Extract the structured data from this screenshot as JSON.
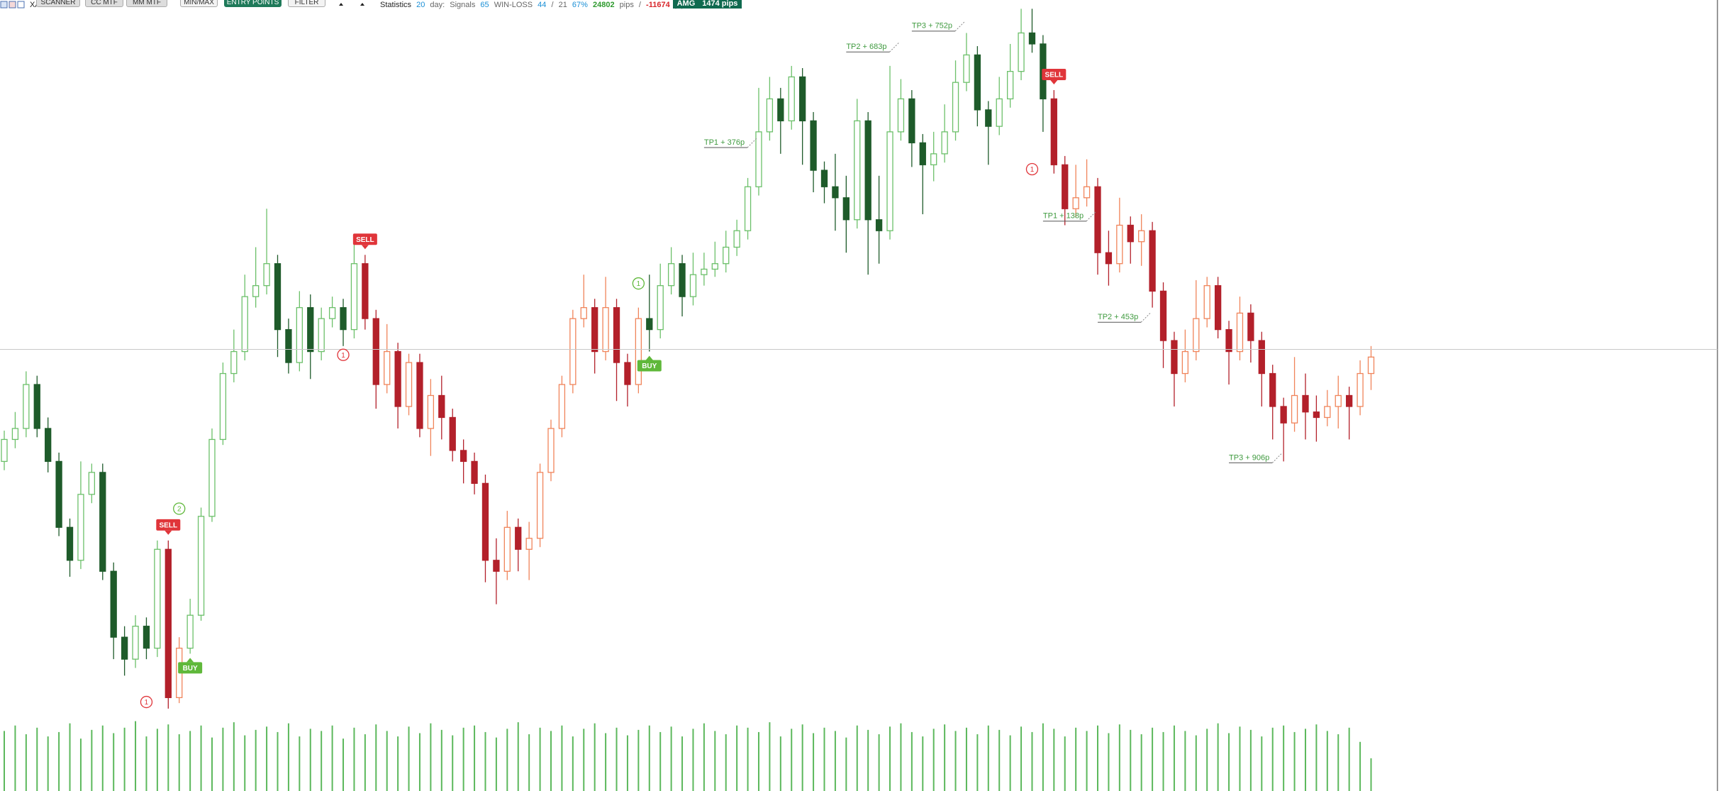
{
  "toolbar": {
    "symbol": "XA",
    "buttons": [
      "SCANNER",
      "CC MTF",
      "MM MTF",
      "MIN/MAX",
      "ENTRY POINTS",
      "FILTER"
    ],
    "statistics": {
      "label": "Statistics",
      "days": "20",
      "days_unit": "day:",
      "signals_label": "Signals",
      "signals": "65",
      "win_loss_label": "WIN-LOSS",
      "wins": "44",
      "separator": "/",
      "losses": "21",
      "win_rate": "67%",
      "profit": "24802",
      "profit_unit": "pips",
      "separator_2": "/",
      "loss": "-11674",
      "loss_unit": "pips"
    },
    "badge": {
      "label": "AMG",
      "value": "1474 pips"
    }
  },
  "chart_data": {
    "type": "candlestick",
    "ylim": [
      0,
      720
    ],
    "open": [
      300,
      320,
      330,
      370,
      330,
      300,
      240,
      210,
      270,
      290,
      200,
      140,
      120,
      150,
      130,
      220,
      85,
      130,
      160,
      250,
      320,
      380,
      400,
      450,
      460,
      480,
      420,
      390,
      440,
      400,
      430,
      440,
      420,
      480,
      430,
      370,
      400,
      350,
      390,
      330,
      360,
      340,
      310,
      300,
      280,
      210,
      200,
      240,
      220,
      230,
      290,
      330,
      370,
      430,
      440,
      400,
      440,
      390,
      370,
      430,
      420,
      460,
      480,
      450,
      470,
      475,
      480,
      495,
      510,
      550,
      600,
      630,
      610,
      650,
      610,
      565,
      550,
      540,
      520,
      610,
      520,
      510,
      600,
      630,
      590,
      570,
      580,
      600,
      645,
      670,
      620,
      605,
      630,
      655,
      690,
      680,
      630,
      570,
      530,
      540,
      550,
      490,
      480,
      515,
      500,
      510,
      455,
      410,
      380,
      400,
      430,
      460,
      420,
      400,
      435,
      410,
      380,
      350,
      335,
      360,
      345,
      340,
      350,
      360,
      350,
      380
    ],
    "high": [
      328,
      345,
      382,
      378,
      340,
      308,
      248,
      300,
      298,
      298,
      208,
      150,
      160,
      158,
      228,
      228,
      140,
      175,
      258,
      330,
      390,
      420,
      470,
      495,
      530,
      488,
      430,
      455,
      452,
      440,
      450,
      448,
      498,
      488,
      438,
      425,
      408,
      398,
      398,
      375,
      378,
      348,
      320,
      308,
      288,
      230,
      255,
      248,
      245,
      298,
      338,
      378,
      438,
      470,
      448,
      468,
      448,
      398,
      440,
      470,
      480,
      495,
      488,
      490,
      490,
      500,
      510,
      520,
      558,
      640,
      650,
      640,
      660,
      658,
      618,
      573,
      580,
      560,
      630,
      618,
      560,
      660,
      648,
      638,
      598,
      600,
      625,
      665,
      690,
      678,
      628,
      650,
      680,
      712,
      712,
      688,
      638,
      578,
      570,
      575,
      558,
      510,
      540,
      523,
      525,
      518,
      463,
      418,
      420,
      465,
      468,
      468,
      428,
      450,
      443,
      418,
      388,
      358,
      395,
      380,
      360,
      365,
      378,
      368,
      392,
      405
    ],
    "low": [
      292,
      312,
      322,
      322,
      290,
      232,
      195,
      202,
      262,
      192,
      120,
      105,
      112,
      120,
      122,
      75,
      80,
      125,
      155,
      245,
      315,
      372,
      392,
      440,
      452,
      395,
      380,
      382,
      375,
      392,
      422,
      405,
      412,
      420,
      348,
      362,
      330,
      342,
      322,
      305,
      320,
      300,
      280,
      270,
      190,
      170,
      192,
      200,
      192,
      222,
      282,
      322,
      362,
      422,
      380,
      392,
      355,
      350,
      362,
      400,
      412,
      452,
      432,
      442,
      460,
      468,
      472,
      487,
      502,
      542,
      592,
      580,
      602,
      570,
      545,
      535,
      510,
      490,
      512,
      470,
      480,
      502,
      592,
      568,
      525,
      555,
      572,
      592,
      637,
      605,
      570,
      597,
      622,
      647,
      672,
      600,
      562,
      515,
      522,
      532,
      470,
      460,
      472,
      480,
      478,
      440,
      385,
      350,
      372,
      392,
      422,
      412,
      370,
      392,
      390,
      350,
      320,
      300,
      327,
      320,
      318,
      332,
      330,
      320,
      342,
      365
    ],
    "close": [
      320,
      330,
      370,
      330,
      300,
      240,
      210,
      270,
      290,
      200,
      140,
      120,
      150,
      130,
      220,
      85,
      130,
      160,
      250,
      320,
      380,
      400,
      450,
      460,
      480,
      420,
      390,
      440,
      400,
      430,
      440,
      420,
      480,
      430,
      370,
      400,
      350,
      390,
      330,
      360,
      340,
      310,
      300,
      280,
      210,
      200,
      240,
      220,
      230,
      290,
      330,
      370,
      430,
      440,
      400,
      440,
      390,
      370,
      430,
      420,
      460,
      480,
      450,
      470,
      475,
      480,
      495,
      510,
      550,
      600,
      630,
      610,
      650,
      610,
      565,
      550,
      540,
      520,
      610,
      520,
      510,
      600,
      630,
      590,
      570,
      580,
      600,
      645,
      670,
      620,
      605,
      630,
      655,
      690,
      680,
      630,
      570,
      530,
      540,
      550,
      490,
      480,
      515,
      500,
      510,
      455,
      410,
      380,
      400,
      430,
      460,
      420,
      400,
      435,
      410,
      380,
      350,
      335,
      360,
      345,
      340,
      350,
      360,
      350,
      380,
      395
    ],
    "signal_styles": {
      "BUY": {
        "bull": "#6cc06a",
        "bear": "#1e5b2a",
        "badge": "#5fb83a"
      },
      "SELL": {
        "bull": "#f0845a",
        "bear": "#b3202a",
        "badge": "#e0353a"
      }
    },
    "signals": [
      {
        "type": "SELL",
        "index": 15
      },
      {
        "type": "BUY",
        "index": 17
      },
      {
        "type": "SELL",
        "index": 33
      },
      {
        "type": "BUY",
        "index": 59
      },
      {
        "type": "SELL",
        "index": 96
      }
    ],
    "markers": [
      {
        "label": "1",
        "signal": "SELL",
        "index": 13,
        "price": 81
      },
      {
        "label": "2",
        "signal": "BUY",
        "index": 16,
        "price": 257
      },
      {
        "label": "1",
        "signal": "SELL",
        "index": 31,
        "price": 397
      },
      {
        "label": "1",
        "signal": "BUY",
        "index": 58,
        "price": 462
      },
      {
        "label": "1",
        "signal": "SELL",
        "index": 94,
        "price": 566
      }
    ],
    "target_color": "#3f9a3f",
    "targets": [
      {
        "label": "TP1 + 376p",
        "index": 64,
        "price": 587
      },
      {
        "label": "TP2 + 683p",
        "index": 77,
        "price": 674
      },
      {
        "label": "TP3 + 752p",
        "index": 83,
        "price": 693
      },
      {
        "label": "TP1 + 138p",
        "index": 95,
        "price": 520
      },
      {
        "label": "TP2 + 453p",
        "index": 100,
        "price": 428
      },
      {
        "label": "TP3 + 906p",
        "index": 112,
        "price": 300
      }
    ],
    "current_price": 402,
    "current_price_color": "#c8c8c8",
    "volume": {
      "ylim": [
        0,
        65
      ],
      "color": "#5cb85c",
      "values": [
        55,
        60,
        52,
        58,
        50,
        54,
        62,
        48,
        56,
        60,
        53,
        58,
        64,
        50,
        57,
        61,
        52,
        55,
        60,
        49,
        58,
        63,
        51,
        56,
        59,
        54,
        62,
        50,
        57,
        55,
        60,
        48,
        58,
        52,
        61,
        55,
        50,
        59,
        53,
        62,
        56,
        51,
        58,
        60,
        54,
        49,
        57,
        63,
        52,
        58,
        55,
        60,
        50,
        57,
        62,
        53,
        58,
        51,
        56,
        60,
        54,
        59,
        50,
        57,
        62,
        55,
        52,
        60,
        58,
        54,
        63,
        50,
        57,
        61,
        53,
        58,
        55,
        49,
        60,
        56,
        52,
        59,
        62,
        54,
        50,
        57,
        61,
        55,
        58,
        52,
        60,
        56,
        51,
        59,
        54,
        62,
        57,
        50,
        58,
        55,
        60,
        53,
        61,
        56,
        52,
        58,
        54,
        60,
        55,
        51,
        57,
        62,
        53,
        59,
        56,
        50,
        58,
        60,
        54,
        57,
        61,
        55,
        52,
        58,
        45,
        30
      ]
    }
  }
}
